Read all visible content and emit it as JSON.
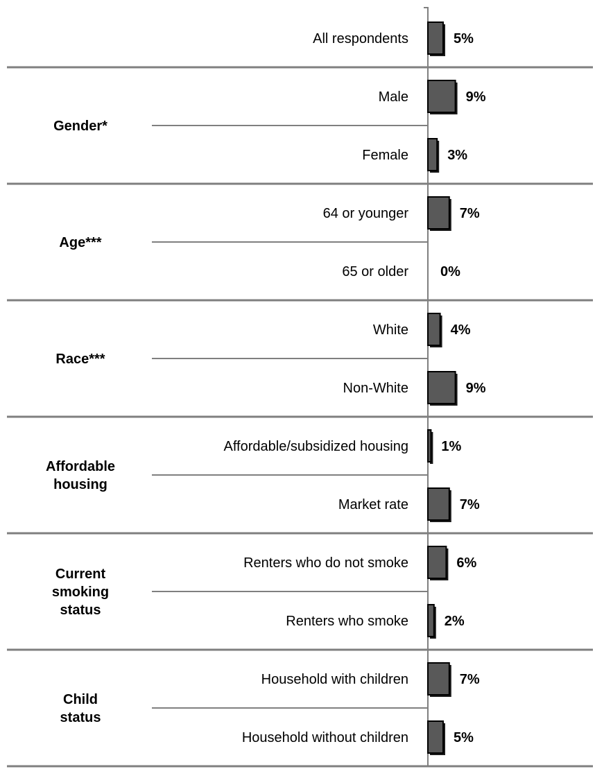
{
  "chart_data": {
    "type": "bar",
    "orientation": "horizontal",
    "value_unit": "%",
    "xlim": [
      0,
      10
    ],
    "grid": false,
    "legend": "none",
    "colors": {
      "bar": "#595959",
      "bar_edge": "#000000",
      "separator": "#7f7f7f"
    },
    "groups": [
      {
        "label": [],
        "items": [
          {
            "category": "All respondents",
            "value": 5,
            "value_label": "5%"
          }
        ]
      },
      {
        "label": [
          "Gender*"
        ],
        "items": [
          {
            "category": "Male",
            "value": 9,
            "value_label": "9%"
          },
          {
            "category": "Female",
            "value": 3,
            "value_label": "3%"
          }
        ]
      },
      {
        "label": [
          "Age***"
        ],
        "items": [
          {
            "category": "64 or younger",
            "value": 7,
            "value_label": "7%"
          },
          {
            "category": "65 or older",
            "value": 0,
            "value_label": "0%"
          }
        ]
      },
      {
        "label": [
          "Race***"
        ],
        "items": [
          {
            "category": "White",
            "value": 4,
            "value_label": "4%"
          },
          {
            "category": "Non-White",
            "value": 9,
            "value_label": "9%"
          }
        ]
      },
      {
        "label": [
          "Affordable",
          "housing"
        ],
        "items": [
          {
            "category": "Affordable/subsidized housing",
            "value": 1,
            "value_label": "1%"
          },
          {
            "category": "Market rate",
            "value": 7,
            "value_label": "7%"
          }
        ]
      },
      {
        "label": [
          "Current",
          "smoking",
          "status"
        ],
        "items": [
          {
            "category": "Renters who do not smoke",
            "value": 6,
            "value_label": "6%"
          },
          {
            "category": "Renters who smoke",
            "value": 2,
            "value_label": "2%"
          }
        ]
      },
      {
        "label": [
          "Child",
          "status"
        ],
        "items": [
          {
            "category": "Household with children",
            "value": 7,
            "value_label": "7%"
          },
          {
            "category": "Household without children",
            "value": 5,
            "value_label": "5%"
          }
        ]
      }
    ]
  }
}
